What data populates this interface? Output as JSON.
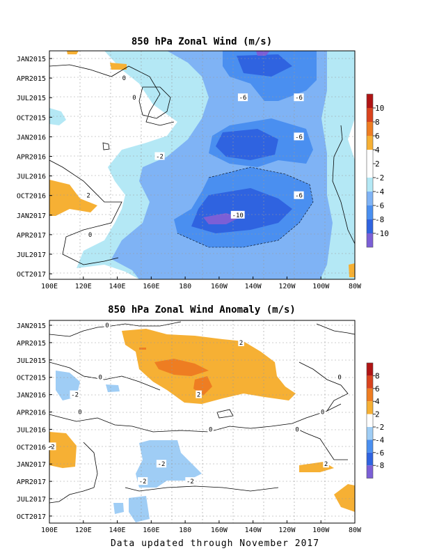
{
  "footer": "Data updated through November 2017",
  "chart_data": [
    {
      "type": "heatmap",
      "title": "850 hPa Zonal Wind (m/s)",
      "x_ticks": [
        "100E",
        "120E",
        "140E",
        "160E",
        "180",
        "160W",
        "140W",
        "120W",
        "100W",
        "80W"
      ],
      "y_ticks": [
        "JAN2015",
        "APR2015",
        "JUL2015",
        "OCT2015",
        "JAN2016",
        "APR2016",
        "JUL2016",
        "OCT2016",
        "JAN2017",
        "APR2017",
        "JUL2017",
        "OCT2017"
      ],
      "colorbar": [
        "-10",
        "-8",
        "-6",
        "-4",
        "-2",
        "2",
        "4",
        "6",
        "8",
        "10"
      ],
      "colorbar_colors": [
        "#7b5fd6",
        "#2f63e0",
        "#4a8ff0",
        "#7fb3f5",
        "#b4e8f5",
        "#ffffff",
        "#ffffff",
        "#f6b034",
        "#ee7d22",
        "#d9431e",
        "#b01414"
      ],
      "grid": true,
      "contour_labels": [
        {
          "text": "-6",
          "x": -146,
          "y": "JUL2015"
        },
        {
          "text": "-6",
          "x": -113,
          "y": "JUL2015"
        },
        {
          "text": "-6",
          "x": -113,
          "y": "JAN2016"
        },
        {
          "text": "-6",
          "x": -113,
          "y": "OCT2016"
        },
        {
          "text": "-10",
          "x": -149,
          "y": "JAN2017"
        },
        {
          "text": "-2",
          "x": 165,
          "y": "APR2016"
        },
        {
          "text": "0",
          "x": 144,
          "y": "APR2015"
        },
        {
          "text": "0",
          "x": 150,
          "y": "JUL2015"
        },
        {
          "text": "2",
          "x": 123,
          "y": "OCT2016"
        },
        {
          "text": "0",
          "x": 124,
          "y": "APR2017"
        }
      ]
    },
    {
      "type": "heatmap",
      "title": "850 hPa Zonal Wind Anomaly (m/s)",
      "x_ticks": [
        "100E",
        "120E",
        "140E",
        "160E",
        "180",
        "160W",
        "140W",
        "120W",
        "100W",
        "80W"
      ],
      "y_ticks": [
        "JAN2015",
        "APR2015",
        "JUL2015",
        "OCT2015",
        "JAN2016",
        "APR2016",
        "JUL2016",
        "OCT2016",
        "JAN2017",
        "APR2017",
        "JUL2017",
        "OCT2017"
      ],
      "colorbar": [
        "-8",
        "-6",
        "-4",
        "-2",
        "2",
        "4",
        "6",
        "8"
      ],
      "colorbar_colors": [
        "#7b5fd6",
        "#2f63e0",
        "#4a8ff0",
        "#9fcdf5",
        "#ffffff",
        "#f6b034",
        "#ee7d22",
        "#d9431e",
        "#b01414"
      ],
      "grid": true,
      "contour_labels": [
        {
          "text": "2",
          "x": -147,
          "y": "APR2015"
        },
        {
          "text": "2",
          "x": -172,
          "y": "JAN2016"
        },
        {
          "text": "-2",
          "x": 115,
          "y": "JAN2016"
        },
        {
          "text": "-2",
          "x": 101,
          "y": "OCT2016"
        },
        {
          "text": "-2",
          "x": 166,
          "y": "JAN2017"
        },
        {
          "text": "-2",
          "x": -177,
          "y": "APR2017"
        },
        {
          "text": "-2",
          "x": 155,
          "y": "APR2017"
        },
        {
          "text": "2",
          "x": -97,
          "y": "JAN2017"
        },
        {
          "text": "0",
          "x": 134,
          "y": "JAN2015"
        },
        {
          "text": "0",
          "x": 130,
          "y": "OCT2015"
        },
        {
          "text": "0",
          "x": 118,
          "y": "APR2016"
        },
        {
          "text": "0",
          "x": -165,
          "y": "JUL2016"
        },
        {
          "text": "0",
          "x": -89,
          "y": "OCT2015"
        },
        {
          "text": "0",
          "x": -99,
          "y": "APR2016"
        },
        {
          "text": "0",
          "x": -114,
          "y": "JUL2016"
        }
      ]
    }
  ]
}
